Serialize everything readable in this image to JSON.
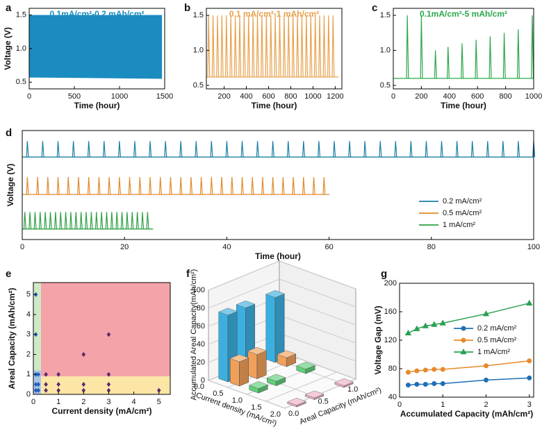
{
  "chart_data": [
    {
      "type": "band",
      "panel": "a",
      "annotation": "0.1mA/cm²-0.2 mAh/cm²",
      "xlabel": "Time (hour)",
      "ylabel": "Voltage (V)",
      "color": "#1a8cc0",
      "x": [
        0,
        1470
      ],
      "upper": [
        1.5,
        1.5
      ],
      "lower": [
        0.57,
        0.55
      ],
      "xlim": [
        0,
        1500
      ],
      "ylim": [
        0.4,
        1.6
      ],
      "xticks": [
        0,
        500,
        1000,
        1500
      ],
      "yticks": [
        0.5,
        {
          "value": 1,
          "label": "1.0"
        },
        1.5
      ]
    },
    {
      "type": "spike",
      "panel": "b",
      "annotation": "0.1 mA/cm²-1 mAh/cm²",
      "xlabel": "Time (hour)",
      "color": "#e8a04c",
      "base": 0.62,
      "x": [
        60,
        100,
        140,
        180,
        220,
        260,
        300,
        340,
        380,
        420,
        460,
        500,
        540,
        580,
        620,
        660,
        700,
        740,
        780,
        820,
        860,
        900,
        940,
        980,
        1020,
        1060,
        1100,
        1140,
        1180
      ],
      "values": [
        1.5,
        1.5,
        1.5,
        1.5,
        1.5,
        1.5,
        1.5,
        1.5,
        1.5,
        1.5,
        1.5,
        1.5,
        1.5,
        1.5,
        1.5,
        1.5,
        1.5,
        1.5,
        1.5,
        1.5,
        1.5,
        1.5,
        1.5,
        1.5,
        1.5,
        1.5,
        1.5,
        1.5,
        1.5
      ],
      "xlim": [
        40,
        1260
      ],
      "ylim": [
        0.45,
        1.6
      ],
      "xticks": [
        200,
        400,
        600,
        800,
        1000,
        1200
      ],
      "yticks": [
        0.5,
        {
          "value": 1,
          "label": "1.0"
        },
        1.5
      ]
    },
    {
      "type": "spike",
      "panel": "c",
      "annotation": "0.1mA/cm²-5 mAh/cm²",
      "xlabel": "Time (hour)",
      "color": "#2aa84a",
      "base": 0.6,
      "x": [
        100,
        200,
        300,
        390,
        490,
        590,
        690,
        790,
        890,
        990
      ],
      "values": [
        1.5,
        1.5,
        1.0,
        1.05,
        1.1,
        1.15,
        1.2,
        1.25,
        1.3,
        1.5
      ],
      "xlim": [
        0,
        1000
      ],
      "ylim": [
        0.45,
        1.6
      ],
      "xticks": [
        0,
        200,
        400,
        600,
        800,
        1000
      ],
      "yticks": [
        0.5,
        {
          "value": 1,
          "label": "1.0"
        },
        1.5
      ]
    },
    {
      "type": "spike",
      "panel": "d",
      "xlabel": "Time (hour)",
      "ylabel": "Voltage (V)",
      "legend": "lower right",
      "xlim": [
        0,
        100
      ],
      "ylim": [
        0,
        3
      ],
      "xticks": [
        0,
        20,
        40,
        60,
        80,
        100
      ],
      "series": [
        {
          "name": "0.2 mA/cm²",
          "color": "#1b7fa3",
          "base": 2.27,
          "x": [
            1,
            4,
            7,
            10,
            13,
            16,
            19,
            22,
            25,
            28,
            31,
            34,
            37,
            40,
            43,
            46,
            49,
            52,
            55,
            58,
            61,
            64,
            67,
            70,
            73,
            76,
            79,
            82,
            85,
            88,
            91,
            94,
            97,
            100
          ],
          "values": [
            2.71,
            2.71,
            2.71,
            2.71,
            2.71,
            2.71,
            2.71,
            2.71,
            2.71,
            2.71,
            2.71,
            2.71,
            2.71,
            2.71,
            2.71,
            2.71,
            2.71,
            2.71,
            2.71,
            2.71,
            2.71,
            2.71,
            2.71,
            2.71,
            2.71,
            2.71,
            2.71,
            2.71,
            2.71,
            2.71,
            2.71,
            2.71,
            2.71,
            2.71
          ]
        },
        {
          "name": "0.5 mA/cm²",
          "color": "#e08a2c",
          "base": 1.24,
          "x": [
            1,
            3,
            5,
            7,
            9,
            11,
            13,
            15,
            17,
            19,
            21,
            23,
            25,
            27,
            29,
            31,
            33,
            35,
            37,
            39,
            41,
            43,
            45,
            47,
            49,
            51,
            53,
            55,
            57,
            59
          ],
          "values": [
            1.72,
            1.72,
            1.72,
            1.72,
            1.72,
            1.72,
            1.72,
            1.72,
            1.72,
            1.72,
            1.72,
            1.72,
            1.72,
            1.72,
            1.72,
            1.72,
            1.72,
            1.72,
            1.72,
            1.72,
            1.72,
            1.72,
            1.72,
            1.72,
            1.72,
            1.72,
            1.72,
            1.72,
            1.72,
            1.72
          ]
        },
        {
          "name": "1 mA/cm²",
          "color": "#2ea043",
          "base": 0.29,
          "x": [
            0.5,
            1.5,
            2.5,
            3.5,
            4.5,
            5.5,
            6.5,
            7.5,
            8.5,
            9.5,
            10.5,
            11.5,
            12.5,
            13.5,
            14.5,
            15.5,
            16.5,
            17.5,
            18.5,
            19.5,
            20.5,
            21.5,
            22.5,
            23.5,
            24.5
          ],
          "values": [
            0.76,
            0.76,
            0.76,
            0.76,
            0.76,
            0.76,
            0.76,
            0.76,
            0.76,
            0.76,
            0.76,
            0.76,
            0.76,
            0.76,
            0.76,
            0.76,
            0.76,
            0.76,
            0.76,
            0.76,
            0.76,
            0.76,
            0.76,
            0.76,
            0.76
          ]
        }
      ]
    },
    {
      "type": "scatter",
      "panel": "e",
      "xlabel": "Current density (mA/cm²)",
      "ylabel": "Areal Capacity (mAh/cm²)",
      "xlim": [
        0,
        5.45
      ],
      "ylim": [
        0,
        5.6
      ],
      "xticks": [
        0,
        1,
        2,
        3,
        4,
        5
      ],
      "yticks": [
        0,
        1,
        2,
        3,
        4,
        5
      ],
      "regions": [
        {
          "x": [
            0.3,
            5.45
          ],
          "y": [
            0.9,
            5.6
          ],
          "color": "#f4a3a8"
        },
        {
          "x": [
            0.3,
            5.45
          ],
          "y": [
            0,
            0.9
          ],
          "color": "#fbe6a6"
        },
        {
          "x": [
            0,
            0.3
          ],
          "y": [
            0,
            5.6
          ],
          "color": "#cfe8c6"
        },
        {
          "x": [
            0,
            0.3
          ],
          "y": [
            0,
            1.2
          ],
          "color": "#a9c4ea"
        }
      ],
      "series": [
        {
          "color": "#1f5fbf",
          "x": [
            0.1,
            0.1,
            0.1,
            0.1,
            0.1,
            0.2,
            0.2,
            0.2
          ],
          "values": [
            0.2,
            0.5,
            1,
            3,
            5,
            0.2,
            0.5,
            1
          ]
        },
        {
          "color": "#5a2a6e",
          "x": [
            0.5,
            0.5,
            0.5,
            1,
            1,
            1,
            2,
            2,
            2,
            3,
            3,
            3,
            3,
            5
          ],
          "values": [
            0.2,
            0.5,
            1,
            0.2,
            0.5,
            1,
            0.2,
            0.5,
            2,
            0.2,
            0.5,
            1,
            3,
            0.2
          ]
        }
      ]
    },
    {
      "type": "bar3d",
      "panel": "f",
      "xlabel": "Current density (mA/cm²)",
      "ylabel": "Areal Capacity (mAh/cm²)",
      "zlabel": "Accumulated Areal Capacity(mAh/cm²)",
      "xlim": [
        0,
        2
      ],
      "ylim": [
        0,
        1.2
      ],
      "zlim": [
        0,
        100
      ],
      "xticks": [
        {
          "value": 0,
          "label": "0.0"
        },
        0.5,
        {
          "value": 1,
          "label": "1.0"
        },
        1.5,
        {
          "value": 2,
          "label": "2.0"
        }
      ],
      "yticks": [
        {
          "value": 0,
          "label": "0.0"
        },
        0.5,
        {
          "value": 1,
          "label": "1.0"
        }
      ],
      "zticks": [
        0,
        20,
        40,
        60,
        80,
        100
      ],
      "bars": [
        {
          "x": 0.2,
          "y": 0.2,
          "value": 74,
          "color": "#3bb0e0"
        },
        {
          "x": 0.2,
          "y": 0.5,
          "value": 74,
          "color": "#3bb0e0"
        },
        {
          "x": 0.2,
          "y": 1,
          "value": 72,
          "color": "#3bb0e0"
        },
        {
          "x": 0.5,
          "y": 0.2,
          "value": 27,
          "color": "#f0a05a"
        },
        {
          "x": 0.5,
          "y": 0.5,
          "value": 27,
          "color": "#f0a05a"
        },
        {
          "x": 0.5,
          "y": 1,
          "value": 10,
          "color": "#f0a05a"
        },
        {
          "x": 1,
          "y": 0.2,
          "value": 5,
          "color": "#5fd07a"
        },
        {
          "x": 1,
          "y": 0.5,
          "value": 5,
          "color": "#5fd07a"
        },
        {
          "x": 1,
          "y": 1,
          "value": 5,
          "color": "#5fd07a"
        },
        {
          "x": 2,
          "y": 0.2,
          "value": 2,
          "color": "#f0b0c8"
        },
        {
          "x": 2,
          "y": 0.5,
          "value": 2,
          "color": "#f0b0c8"
        },
        {
          "x": 2,
          "y": 1,
          "value": 2,
          "color": "#f0b0c8"
        }
      ]
    },
    {
      "type": "line",
      "panel": "g",
      "xlabel": "Accumulated Capacity (mAh/cm²)",
      "ylabel": "Voltage Gap (mV)",
      "legend": "center right",
      "xlim": [
        0,
        3.1
      ],
      "ylim": [
        40,
        200
      ],
      "xticks": [
        0,
        1,
        2,
        3
      ],
      "yticks": [
        40,
        80,
        120,
        160,
        200
      ],
      "x": [
        0.2,
        0.4,
        0.6,
        0.8,
        1,
        2,
        3
      ],
      "series": [
        {
          "name": "0.2 mA/cm²",
          "color": "#1f6fb5",
          "marker": "circle",
          "values": [
            57,
            58,
            58,
            59,
            59,
            64,
            67
          ]
        },
        {
          "name": "0.5 mA/cm²",
          "color": "#e8892b",
          "marker": "circle",
          "values": [
            75,
            77,
            78,
            79,
            79,
            84,
            91
          ]
        },
        {
          "name": "1 mA/cm²",
          "color": "#2aa052",
          "marker": "triangle",
          "values": [
            130,
            136,
            140,
            142,
            144,
            157,
            172
          ]
        }
      ]
    }
  ]
}
